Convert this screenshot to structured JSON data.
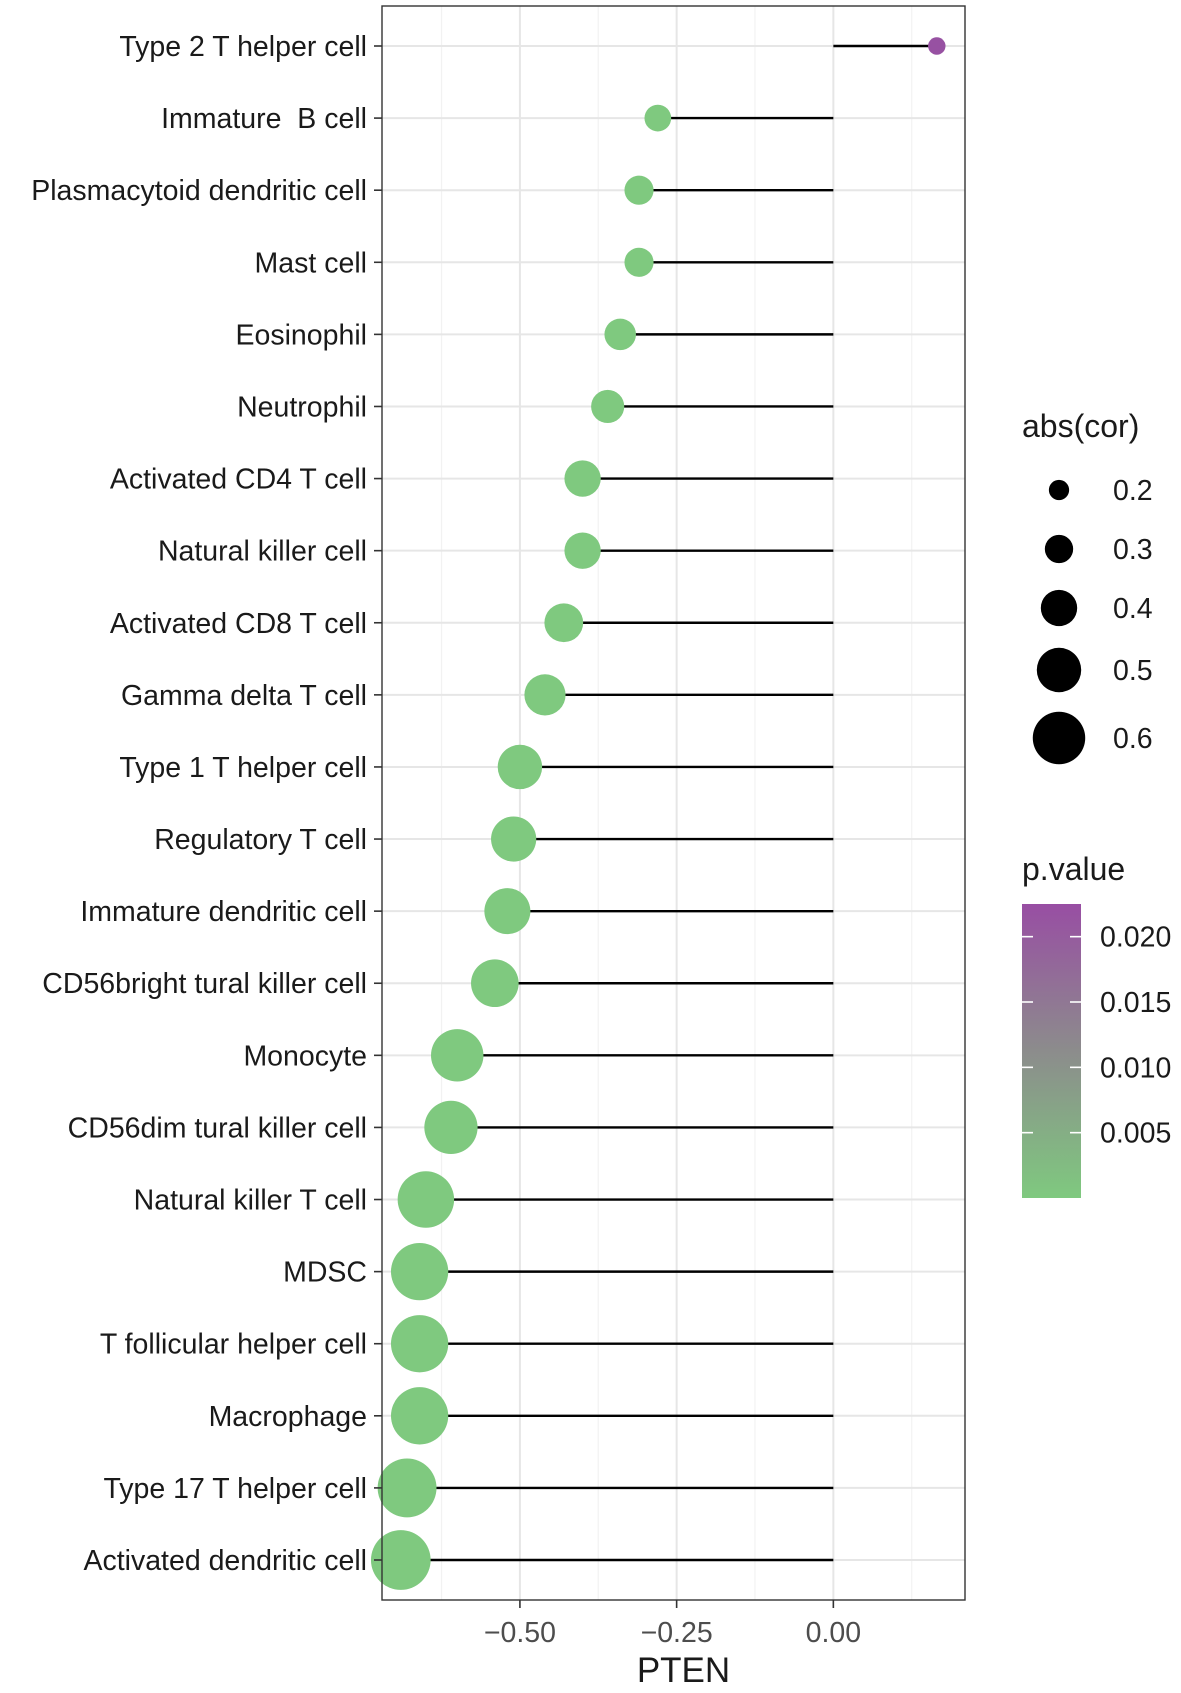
{
  "chart_data": {
    "type": "lollipop",
    "xlabel": "PTEN",
    "xlim": [
      -0.72,
      0.21
    ],
    "xticks": [
      -0.5,
      -0.25,
      0.0
    ],
    "xtick_labels": [
      "−0.50",
      "−0.25",
      "0.00"
    ],
    "grid": true,
    "legend_placement": "right",
    "categories": [
      "Type 2 T helper cell",
      "Immature  B cell",
      "Plasmacytoid dendritic cell",
      "Mast cell",
      "Eosinophil",
      "Neutrophil",
      "Activated CD4 T cell",
      "Natural killer cell",
      "Activated CD8 T cell",
      "Gamma delta T cell",
      "Type 1 T helper cell",
      "Regulatory T cell",
      "Immature dendritic cell",
      "CD56bright tural killer cell",
      "Monocyte",
      "CD56dim tural killer cell",
      "Natural killer T cell",
      "MDSC",
      "T follicular helper cell",
      "Macrophage",
      "Type 17 T helper cell",
      "Activated dendritic cell"
    ],
    "values": [
      0.165,
      -0.28,
      -0.31,
      -0.31,
      -0.34,
      -0.36,
      -0.4,
      -0.4,
      -0.43,
      -0.46,
      -0.5,
      -0.51,
      -0.52,
      -0.54,
      -0.6,
      -0.61,
      -0.65,
      -0.66,
      -0.66,
      -0.66,
      -0.68,
      -0.69
    ],
    "abs_cor": [
      0.165,
      0.28,
      0.31,
      0.31,
      0.34,
      0.36,
      0.4,
      0.4,
      0.43,
      0.46,
      0.5,
      0.51,
      0.52,
      0.54,
      0.6,
      0.61,
      0.65,
      0.66,
      0.66,
      0.66,
      0.68,
      0.69
    ],
    "p_value": [
      0.022,
      0.0,
      0.0,
      0.0,
      0.0,
      0.0,
      0.0,
      0.0,
      0.0,
      0.0,
      0.0,
      0.0,
      0.0,
      0.0,
      0.0,
      0.0,
      0.0,
      0.0,
      0.0,
      0.0,
      0.0,
      0.0
    ],
    "size_legend": {
      "title": "abs(cor)",
      "values": [
        0.2,
        0.3,
        0.4,
        0.5,
        0.6
      ],
      "labels": [
        "0.2",
        "0.3",
        "0.4",
        "0.5",
        "0.6"
      ]
    },
    "color_legend": {
      "title": "p.value",
      "range": [
        0.0,
        0.0225
      ],
      "ticks": [
        0.005,
        0.01,
        0.015,
        0.02
      ],
      "labels": [
        "0.005",
        "0.010",
        "0.015",
        "0.020"
      ],
      "low_color": "#7fc97f",
      "high_color": "#984ea3"
    }
  }
}
